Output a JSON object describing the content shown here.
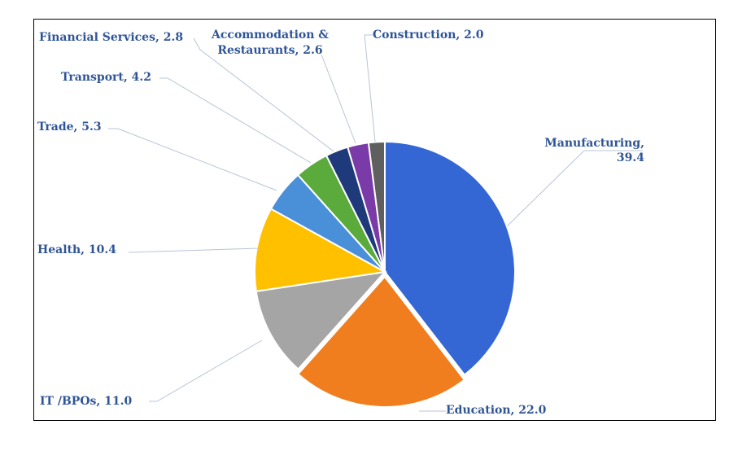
{
  "chart_data": {
    "type": "pie",
    "title": "",
    "slices": [
      {
        "label": "Manufacturing",
        "value": 39.4,
        "value_text": "39.4",
        "color": "#3467d3"
      },
      {
        "label": "Education",
        "value": 22.0,
        "value_text": "22.0",
        "color": "#f07d1e"
      },
      {
        "label": "IT /BPOs",
        "value": 11.0,
        "value_text": "11.0",
        "color": "#a5a5a5"
      },
      {
        "label": "Health",
        "value": 10.4,
        "value_text": "10.4",
        "color": "#ffc000"
      },
      {
        "label": "Trade",
        "value": 5.3,
        "value_text": "5.3",
        "color": "#4a90d9"
      },
      {
        "label": "Transport",
        "value": 4.2,
        "value_text": "4.2",
        "color": "#5aaa3c"
      },
      {
        "label": "Financial Services",
        "value": 2.8,
        "value_text": "2.8",
        "color": "#1f3a7a"
      },
      {
        "label": "Accommodation & Restaurants",
        "value": 2.6,
        "value_text": "2.6",
        "color": "#7a3aa8"
      },
      {
        "label": "Construction",
        "value": 2.0,
        "value_text": "2.0",
        "color": "#5f5f5f"
      }
    ],
    "legend": "none",
    "data_labels": "outside-with-leader-lines",
    "label_color": "#2f5597"
  }
}
